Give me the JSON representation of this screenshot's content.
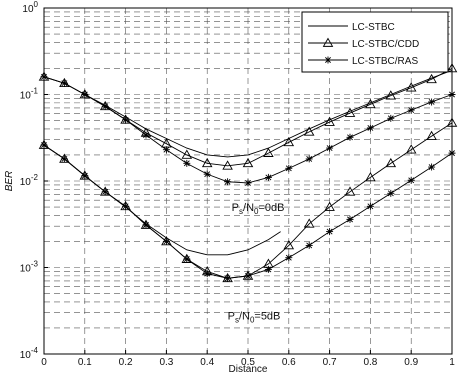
{
  "chart_data": {
    "type": "line",
    "title": "",
    "xlabel": "Distance",
    "ylabel": "BER",
    "y_scale": "log",
    "xlim": [
      0,
      1
    ],
    "ylim": [
      0.0001,
      1
    ],
    "grid": true,
    "grid_style": "dashed",
    "legend_position": "top-right",
    "x_ticks": [
      "0",
      "0.1",
      "0.2",
      "0.3",
      "0.4",
      "0.5",
      "0.6",
      "0.7",
      "0.8",
      "0.9",
      "1"
    ],
    "y_ticks": [
      {
        "value": 1,
        "base": "10",
        "exp": "0"
      },
      {
        "value": 0.1,
        "base": "10",
        "exp": "-1"
      },
      {
        "value": 0.01,
        "base": "10",
        "exp": "-2"
      },
      {
        "value": 0.001,
        "base": "10",
        "exp": "-3"
      },
      {
        "value": 0.0001,
        "base": "10",
        "exp": "-4"
      }
    ],
    "annotations": [
      {
        "main": "P",
        "sub1": "s",
        "mid": "/N",
        "sub2": "0",
        "tail": "=0dB",
        "x": 0.46,
        "y": 0.0045
      },
      {
        "main": "P",
        "sub1": "s",
        "mid": "/N",
        "sub2": "0",
        "tail": "=5dB",
        "x": 0.45,
        "y": 0.00025
      }
    ],
    "series": [
      {
        "name": "LC-STBC",
        "marker": "none",
        "groups": [
          {
            "x": [
              0,
              0.05,
              0.1,
              0.15,
              0.2,
              0.25,
              0.3,
              0.35,
              0.4,
              0.45,
              0.5,
              0.55,
              0.6,
              0.65,
              0.7,
              0.75,
              0.8,
              0.85,
              0.9,
              0.95,
              1.0
            ],
            "y": [
              0.16,
              0.135,
              0.1,
              0.075,
              0.055,
              0.04,
              0.031,
              0.024,
              0.02,
              0.019,
              0.02,
              0.024,
              0.031,
              0.04,
              0.051,
              0.064,
              0.08,
              0.1,
              0.125,
              0.155,
              0.19
            ]
          },
          {
            "x": [
              0,
              0.05,
              0.1,
              0.15,
              0.2,
              0.25,
              0.3,
              0.35,
              0.4,
              0.45,
              0.5,
              0.55,
              0.58
            ],
            "y": [
              0.026,
              0.018,
              0.0115,
              0.0075,
              0.005,
              0.0032,
              0.0022,
              0.0016,
              0.0014,
              0.0014,
              0.0016,
              0.0021,
              0.0026
            ]
          }
        ]
      },
      {
        "name": "LC-STBC/CDD",
        "marker": "triangle",
        "groups": [
          {
            "x": [
              0,
              0.05,
              0.1,
              0.15,
              0.2,
              0.25,
              0.3,
              0.35,
              0.4,
              0.45,
              0.5,
              0.55,
              0.6,
              0.65,
              0.7,
              0.75,
              0.8,
              0.85,
              0.9,
              0.95,
              1.0
            ],
            "y": [
              0.16,
              0.135,
              0.1,
              0.073,
              0.051,
              0.036,
              0.027,
              0.02,
              0.016,
              0.015,
              0.016,
              0.021,
              0.028,
              0.037,
              0.048,
              0.061,
              0.077,
              0.097,
              0.12,
              0.15,
              0.2
            ]
          },
          {
            "x": [
              0,
              0.05,
              0.1,
              0.15,
              0.2,
              0.25,
              0.3,
              0.35,
              0.4,
              0.45,
              0.5,
              0.55,
              0.6,
              0.65,
              0.7,
              0.75,
              0.8,
              0.85,
              0.9,
              0.95,
              1.0
            ],
            "y": [
              0.026,
              0.018,
              0.0115,
              0.0075,
              0.0051,
              0.0031,
              0.002,
              0.00125,
              0.0009,
              0.00075,
              0.0008,
              0.0011,
              0.0018,
              0.0032,
              0.005,
              0.0075,
              0.011,
              0.016,
              0.023,
              0.033,
              0.047
            ]
          }
        ]
      },
      {
        "name": "LC-STBC/RAS",
        "marker": "star",
        "groups": [
          {
            "x": [
              0,
              0.05,
              0.1,
              0.15,
              0.2,
              0.25,
              0.3,
              0.35,
              0.4,
              0.45,
              0.5,
              0.55,
              0.6,
              0.65,
              0.7,
              0.75,
              0.8,
              0.85,
              0.9,
              0.95,
              1.0
            ],
            "y": [
              0.16,
              0.135,
              0.1,
              0.073,
              0.051,
              0.034,
              0.023,
              0.016,
              0.012,
              0.0098,
              0.0095,
              0.011,
              0.014,
              0.018,
              0.024,
              0.032,
              0.041,
              0.053,
              0.066,
              0.082,
              0.1
            ]
          },
          {
            "x": [
              0,
              0.05,
              0.1,
              0.15,
              0.2,
              0.25,
              0.3,
              0.35,
              0.4,
              0.45,
              0.5,
              0.55,
              0.6,
              0.65,
              0.7,
              0.75,
              0.8,
              0.85,
              0.9,
              0.95,
              1.0
            ],
            "y": [
              0.026,
              0.018,
              0.0115,
              0.0075,
              0.0051,
              0.0031,
              0.002,
              0.00125,
              0.00085,
              0.00075,
              0.0008,
              0.00095,
              0.0013,
              0.0018,
              0.0026,
              0.0036,
              0.0051,
              0.0072,
              0.0102,
              0.0145,
              0.021
            ]
          }
        ]
      }
    ]
  }
}
